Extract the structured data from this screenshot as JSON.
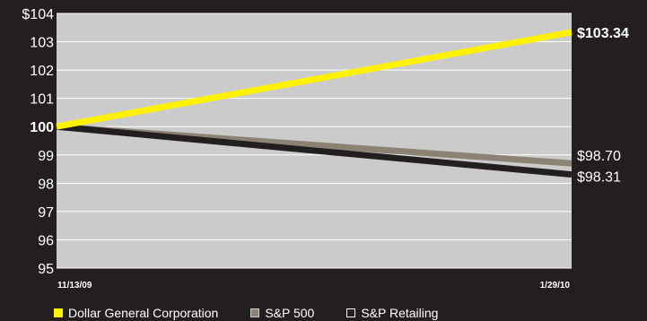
{
  "chart_data": {
    "type": "line",
    "x": [
      "11/13/09",
      "1/29/10"
    ],
    "ylim": [
      95,
      104
    ],
    "yticks": [
      "$104",
      "103",
      "102",
      "101",
      "100",
      "99",
      "98",
      "97",
      "96",
      "95"
    ],
    "series": [
      {
        "name": "Dollar General Corporation",
        "values": [
          100,
          103.34
        ],
        "color": "#fff200",
        "end_label": "$103.34"
      },
      {
        "name": "S&P 500",
        "values": [
          100,
          98.7
        ],
        "color": "#8c8273",
        "end_label": "$98.70"
      },
      {
        "name": "S&P Retailing",
        "values": [
          100,
          98.31
        ],
        "color": "#231f20",
        "end_label": "$98.31"
      }
    ],
    "grid": true,
    "plot_background": "#cbcbcb",
    "legend_position": "bottom-left"
  },
  "colors": {
    "background": "#231f20",
    "plot": "#cbcbcb",
    "gridline": "#ffffff",
    "text": "#ffffff"
  }
}
